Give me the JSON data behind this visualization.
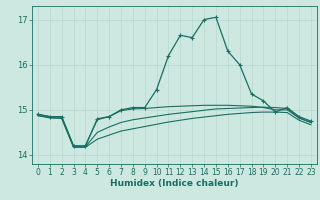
{
  "xlabel": "Humidex (Indice chaleur)",
  "xlim": [
    -0.5,
    23.5
  ],
  "ylim": [
    13.8,
    17.3
  ],
  "xticks": [
    0,
    1,
    2,
    3,
    4,
    5,
    6,
    7,
    8,
    9,
    10,
    11,
    12,
    13,
    14,
    15,
    16,
    17,
    18,
    19,
    20,
    21,
    22,
    23
  ],
  "yticks": [
    14,
    15,
    16,
    17
  ],
  "bg_color": "#cde8e0",
  "grid_color": "#b8d8d0",
  "line_color": "#1a6e62",
  "curves": [
    {
      "x": [
        0,
        1,
        2,
        3,
        4,
        5,
        6,
        7,
        8,
        9,
        10,
        11,
        12,
        13,
        14,
        15,
        16,
        17,
        18,
        19,
        20,
        21,
        22,
        23
      ],
      "y": [
        14.9,
        14.85,
        14.85,
        14.2,
        14.2,
        14.8,
        14.85,
        15.0,
        15.05,
        15.05,
        15.45,
        16.2,
        16.65,
        16.6,
        17.0,
        17.05,
        16.3,
        16.0,
        15.35,
        15.2,
        14.95,
        15.05,
        14.85,
        14.75
      ],
      "marker": true
    },
    {
      "x": [
        0,
        1,
        2,
        3,
        4,
        5,
        6,
        7,
        8,
        9,
        10,
        11,
        12,
        13,
        14,
        15,
        16,
        17,
        18,
        19,
        20,
        21,
        22,
        23
      ],
      "y": [
        14.9,
        14.85,
        14.85,
        14.2,
        14.2,
        14.78,
        14.85,
        14.98,
        15.02,
        15.03,
        15.05,
        15.07,
        15.08,
        15.09,
        15.1,
        15.1,
        15.1,
        15.09,
        15.08,
        15.05,
        15.0,
        15.0,
        14.82,
        14.72
      ],
      "marker": false
    },
    {
      "x": [
        0,
        1,
        2,
        3,
        4,
        5,
        6,
        7,
        8,
        9,
        10,
        11,
        12,
        13,
        14,
        15,
        16,
        17,
        18,
        19,
        20,
        21,
        22,
        23
      ],
      "y": [
        14.88,
        14.83,
        14.82,
        14.18,
        14.18,
        14.5,
        14.62,
        14.72,
        14.78,
        14.82,
        14.86,
        14.9,
        14.93,
        14.96,
        14.99,
        15.02,
        15.03,
        15.04,
        15.05,
        15.06,
        15.05,
        15.03,
        14.82,
        14.72
      ],
      "marker": false
    },
    {
      "x": [
        0,
        1,
        2,
        3,
        4,
        5,
        6,
        7,
        8,
        9,
        10,
        11,
        12,
        13,
        14,
        15,
        16,
        17,
        18,
        19,
        20,
        21,
        22,
        23
      ],
      "y": [
        14.87,
        14.82,
        14.81,
        14.17,
        14.17,
        14.35,
        14.44,
        14.53,
        14.58,
        14.63,
        14.68,
        14.73,
        14.77,
        14.81,
        14.84,
        14.87,
        14.9,
        14.92,
        14.94,
        14.95,
        14.95,
        14.94,
        14.77,
        14.67
      ],
      "marker": false
    }
  ]
}
